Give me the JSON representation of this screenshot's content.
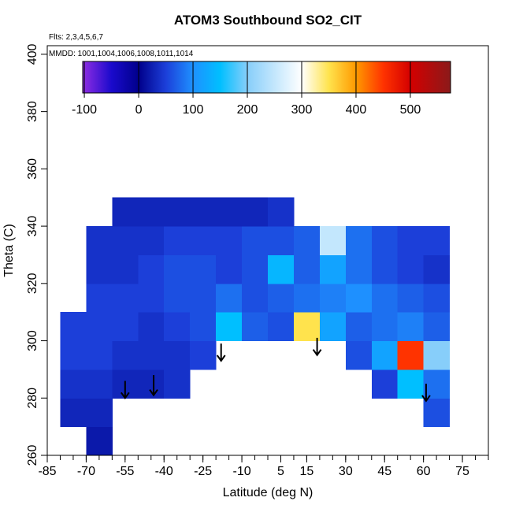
{
  "chart_data": {
    "type": "heatmap",
    "title": "ATOM3 Southbound SO2_CIT",
    "annotations": [
      "Flts: 2,3,4,5,6,7",
      "MMDD: 1001,1004,1006,1008,1011,1014"
    ],
    "x_label": "Latitude (deg N)",
    "y_label": "Theta (C)",
    "xlim": [
      -85,
      85
    ],
    "ylim": [
      260,
      403
    ],
    "xticks": [
      -85,
      -70,
      -55,
      -40,
      -25,
      -10,
      5,
      15,
      30,
      45,
      60,
      75
    ],
    "xminorticks": [
      -85,
      -80,
      -75,
      -70,
      -65,
      -60,
      -55,
      -50,
      -45,
      -40,
      -35,
      -30,
      -25,
      -20,
      -15,
      -10,
      -5,
      0,
      5,
      10,
      15,
      20,
      25,
      30,
      35,
      40,
      45,
      50,
      55,
      60,
      65,
      70,
      75,
      80,
      85
    ],
    "yticks": [
      260,
      280,
      300,
      320,
      340,
      360,
      380,
      400
    ],
    "x": [
      -75,
      -65,
      -55,
      -45,
      -35,
      -25,
      -15,
      -5,
      5,
      15,
      25,
      35,
      45,
      55,
      65
    ],
    "y": [
      265,
      275,
      285,
      295,
      305,
      315,
      325,
      335,
      345
    ],
    "z": [
      [
        null,
        20,
        null,
        null,
        null,
        null,
        null,
        null,
        null,
        null,
        null,
        null,
        null,
        null,
        null
      ],
      [
        30,
        30,
        null,
        null,
        null,
        null,
        null,
        null,
        null,
        null,
        null,
        null,
        null,
        null,
        60
      ],
      [
        40,
        40,
        30,
        30,
        40,
        null,
        null,
        null,
        null,
        null,
        null,
        null,
        50,
        150,
        80
      ],
      [
        50,
        50,
        40,
        40,
        40,
        50,
        null,
        null,
        null,
        null,
        null,
        60,
        120,
        450,
        200
      ],
      [
        50,
        50,
        50,
        40,
        50,
        60,
        150,
        70,
        60,
        350,
        120,
        70,
        80,
        90,
        70
      ],
      [
        null,
        50,
        50,
        50,
        60,
        60,
        80,
        60,
        70,
        80,
        90,
        100,
        80,
        70,
        60
      ],
      [
        null,
        40,
        40,
        50,
        60,
        60,
        50,
        60,
        140,
        70,
        120,
        80,
        60,
        50,
        40
      ],
      [
        null,
        40,
        40,
        40,
        50,
        50,
        50,
        60,
        60,
        70,
        250,
        80,
        60,
        50,
        50
      ],
      [
        null,
        null,
        30,
        30,
        30,
        30,
        30,
        30,
        40,
        null,
        null,
        null,
        null,
        null,
        null
      ]
    ],
    "colorbar_lim": [
      -103,
      574
    ],
    "colorbar_ticks": [
      -100,
      0,
      100,
      200,
      300,
      400,
      500
    ],
    "colorscale": [
      [
        -100,
        "#8a2be2"
      ],
      [
        -50,
        "#1a0acc"
      ],
      [
        0,
        "#00008b"
      ],
      [
        50,
        "#1c3fd9"
      ],
      [
        100,
        "#1e90ff"
      ],
      [
        150,
        "#00bfff"
      ],
      [
        200,
        "#87cefa"
      ],
      [
        300,
        "#ffffff"
      ],
      [
        350,
        "#ffe34d"
      ],
      [
        400,
        "#ff9900"
      ],
      [
        450,
        "#ff3300"
      ],
      [
        500,
        "#d40000"
      ],
      [
        575,
        "#8b1a1a"
      ]
    ],
    "arrows": [
      {
        "x": -55,
        "y": [
          286,
          280
        ]
      },
      {
        "x": -44,
        "y": [
          288,
          281
        ]
      },
      {
        "x": -18,
        "y": [
          299,
          293
        ]
      },
      {
        "x": 19,
        "y": [
          301,
          295
        ]
      },
      {
        "x": 61,
        "y": [
          285,
          279
        ]
      }
    ]
  }
}
